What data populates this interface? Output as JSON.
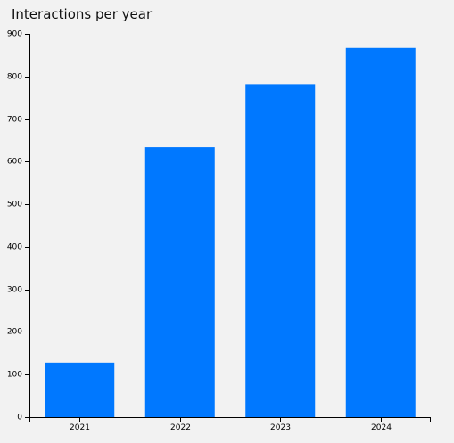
{
  "chart_data": {
    "type": "bar",
    "title": "Interactions per year",
    "categories": [
      "2021",
      "2022",
      "2023",
      "2024"
    ],
    "values": [
      128,
      634,
      782,
      867
    ],
    "xlabel": "",
    "ylabel": "",
    "ylim": [
      0,
      900
    ],
    "yticks": [
      0,
      100,
      200,
      300,
      400,
      500,
      600,
      700,
      800,
      900
    ],
    "grid": false,
    "bar_color": "#0078ff",
    "background": "#f2f2f2"
  }
}
